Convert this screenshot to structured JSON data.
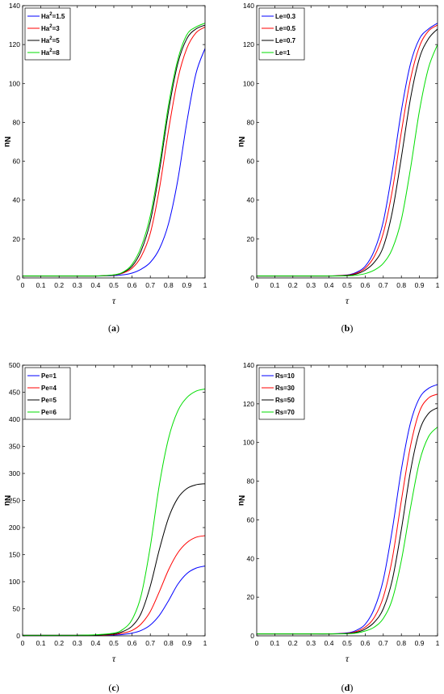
{
  "chart_data": [
    {
      "type": "line",
      "caption": "a",
      "xlabel": "τ",
      "ylabel": "Nu",
      "xlim": [
        0,
        1
      ],
      "ylim": [
        0,
        140
      ],
      "xticks": [
        "0",
        "0.1",
        "0.2",
        "0.3",
        "0.4",
        "0.5",
        "0.6",
        "0.7",
        "0.8",
        "0.9",
        "1"
      ],
      "yticks": [
        "0",
        "20",
        "40",
        "60",
        "80",
        "100",
        "120",
        "140"
      ],
      "grid": false,
      "legend_position": "top-left",
      "x": [
        0,
        0.1,
        0.2,
        0.3,
        0.4,
        0.5,
        0.55,
        0.6,
        0.65,
        0.7,
        0.75,
        0.8,
        0.85,
        0.9,
        0.95,
        1.0
      ],
      "series": [
        {
          "name": "Ha²=1.5",
          "legend_prefix": "Ha",
          "legend_sup": "2",
          "legend_suffix": "=1.5",
          "color": "#0000ff",
          "values": [
            1,
            1,
            1,
            1,
            1,
            1.2,
            1.6,
            2.5,
            4.5,
            8,
            15,
            28,
            50,
            80,
            105,
            118
          ]
        },
        {
          "name": "Ha²=3",
          "legend_prefix": "Ha",
          "legend_sup": "2",
          "legend_suffix": "=3",
          "color": "#ff0000",
          "values": [
            1,
            1,
            1,
            1,
            1,
            1.4,
            2.5,
            5,
            11,
            23,
            46,
            76,
            102,
            118,
            126,
            129
          ]
        },
        {
          "name": "Ha²=5",
          "legend_prefix": "Ha",
          "legend_sup": "2",
          "legend_suffix": "=5",
          "color": "#000000",
          "values": [
            1,
            1,
            1,
            1,
            1,
            1.5,
            2.8,
            6,
            14,
            29,
            55,
            86,
            110,
            123,
            128,
            130
          ]
        },
        {
          "name": "Ha²=8",
          "legend_prefix": "Ha",
          "legend_sup": "2",
          "legend_suffix": "=8",
          "color": "#00dd00",
          "values": [
            1,
            1,
            1,
            1,
            1,
            1.6,
            3,
            7,
            16,
            32,
            58,
            89,
            112,
            125,
            129,
            131
          ]
        }
      ]
    },
    {
      "type": "line",
      "caption": "b",
      "xlabel": "τ",
      "ylabel": "Nu",
      "xlim": [
        0,
        1
      ],
      "ylim": [
        0,
        140
      ],
      "xticks": [
        "0",
        "0.1",
        "0.2",
        "0.3",
        "0.4",
        "0.5",
        "0.6",
        "0.7",
        "0.8",
        "0.9",
        "1"
      ],
      "yticks": [
        "0",
        "20",
        "40",
        "60",
        "80",
        "100",
        "120",
        "140"
      ],
      "grid": false,
      "legend_position": "top-left",
      "x": [
        0,
        0.1,
        0.2,
        0.3,
        0.4,
        0.5,
        0.55,
        0.6,
        0.65,
        0.7,
        0.75,
        0.8,
        0.85,
        0.9,
        0.95,
        1.0
      ],
      "series": [
        {
          "name": "Le=0.3",
          "color": "#0000ff",
          "values": [
            1,
            1,
            1,
            1,
            1,
            1.5,
            2.8,
            6,
            14,
            29,
            55,
            86,
            110,
            123,
            128,
            131
          ]
        },
        {
          "name": "Le=0.5",
          "color": "#ff0000",
          "values": [
            1,
            1,
            1,
            1,
            1,
            1.4,
            2.4,
            5,
            11,
            23,
            45,
            75,
            102,
            119,
            127,
            130
          ]
        },
        {
          "name": "Le=0.7",
          "color": "#000000",
          "values": [
            1,
            1,
            1,
            1,
            1,
            1.3,
            2,
            4,
            8,
            16,
            34,
            62,
            92,
            113,
            123,
            128
          ]
        },
        {
          "name": "Le=1",
          "color": "#00dd00",
          "values": [
            1,
            1,
            1,
            1,
            1,
            1.1,
            1.4,
            2.2,
            4,
            7.5,
            15,
            30,
            56,
            86,
            108,
            120
          ]
        }
      ]
    },
    {
      "type": "line",
      "caption": "c",
      "xlabel": "τ",
      "ylabel": "Nu",
      "xlim": [
        0,
        1
      ],
      "ylim": [
        0,
        500
      ],
      "xticks": [
        "0",
        "0.1",
        "0.2",
        "0.3",
        "0.4",
        "0.5",
        "0.6",
        "0.7",
        "0.8",
        "0.9",
        "1"
      ],
      "yticks": [
        "0",
        "50",
        "100",
        "150",
        "200",
        "250",
        "300",
        "350",
        "400",
        "450",
        "500"
      ],
      "grid": false,
      "legend_position": "top-left",
      "x": [
        0,
        0.1,
        0.2,
        0.3,
        0.4,
        0.5,
        0.55,
        0.6,
        0.65,
        0.7,
        0.75,
        0.8,
        0.85,
        0.9,
        0.95,
        1.0
      ],
      "series": [
        {
          "name": "Pe=1",
          "color": "#0000ff",
          "values": [
            1,
            1,
            1,
            1,
            1,
            1.5,
            2.5,
            5,
            10,
            20,
            38,
            65,
            95,
            115,
            125,
            129
          ]
        },
        {
          "name": "Pe=4",
          "color": "#ff0000",
          "values": [
            1,
            1,
            1,
            1,
            1.2,
            2.5,
            5,
            10,
            22,
            45,
            82,
            122,
            153,
            172,
            182,
            185
          ]
        },
        {
          "name": "Pe=5",
          "color": "#000000",
          "values": [
            1,
            1,
            1,
            1,
            1.5,
            3.5,
            8,
            18,
            42,
            92,
            160,
            218,
            254,
            272,
            279,
            281
          ]
        },
        {
          "name": "Pe=6",
          "color": "#00dd00",
          "values": [
            1,
            1,
            1,
            1,
            2,
            5,
            12,
            30,
            75,
            165,
            280,
            365,
            415,
            440,
            452,
            456
          ]
        }
      ]
    },
    {
      "type": "line",
      "caption": "d",
      "xlabel": "τ",
      "ylabel": "Nu",
      "xlim": [
        0,
        1
      ],
      "ylim": [
        0,
        140
      ],
      "xticks": [
        "0",
        "0.1",
        "0.2",
        "0.3",
        "0.4",
        "0.5",
        "0.6",
        "0.7",
        "0.8",
        "0.9",
        "1"
      ],
      "yticks": [
        "0",
        "20",
        "40",
        "60",
        "80",
        "100",
        "120",
        "140"
      ],
      "grid": false,
      "legend_position": "top-left",
      "x": [
        0,
        0.1,
        0.2,
        0.3,
        0.4,
        0.5,
        0.55,
        0.6,
        0.65,
        0.7,
        0.75,
        0.8,
        0.85,
        0.9,
        0.95,
        1.0
      ],
      "series": [
        {
          "name": "Rs=10",
          "color": "#0000ff",
          "values": [
            1,
            1,
            1,
            1,
            1,
            1.5,
            2.8,
            6,
            14,
            29,
            55,
            86,
            110,
            123,
            128,
            130
          ]
        },
        {
          "name": "Rs=30",
          "color": "#ff0000",
          "values": [
            1,
            1,
            1,
            1,
            1,
            1.3,
            2.2,
            4.5,
            9.5,
            20,
            40,
            70,
            98,
            116,
            123,
            125
          ]
        },
        {
          "name": "Rs=50",
          "color": "#000000",
          "values": [
            1,
            1,
            1,
            1,
            1,
            1.2,
            1.8,
            3.5,
            7,
            14,
            29,
            55,
            85,
            106,
            115,
            118
          ]
        },
        {
          "name": "Rs=70",
          "color": "#00dd00",
          "values": [
            1,
            1,
            1,
            1,
            1,
            1.1,
            1.4,
            2.5,
            4.5,
            9,
            19,
            39,
            66,
            90,
            103,
            108
          ]
        }
      ]
    }
  ]
}
